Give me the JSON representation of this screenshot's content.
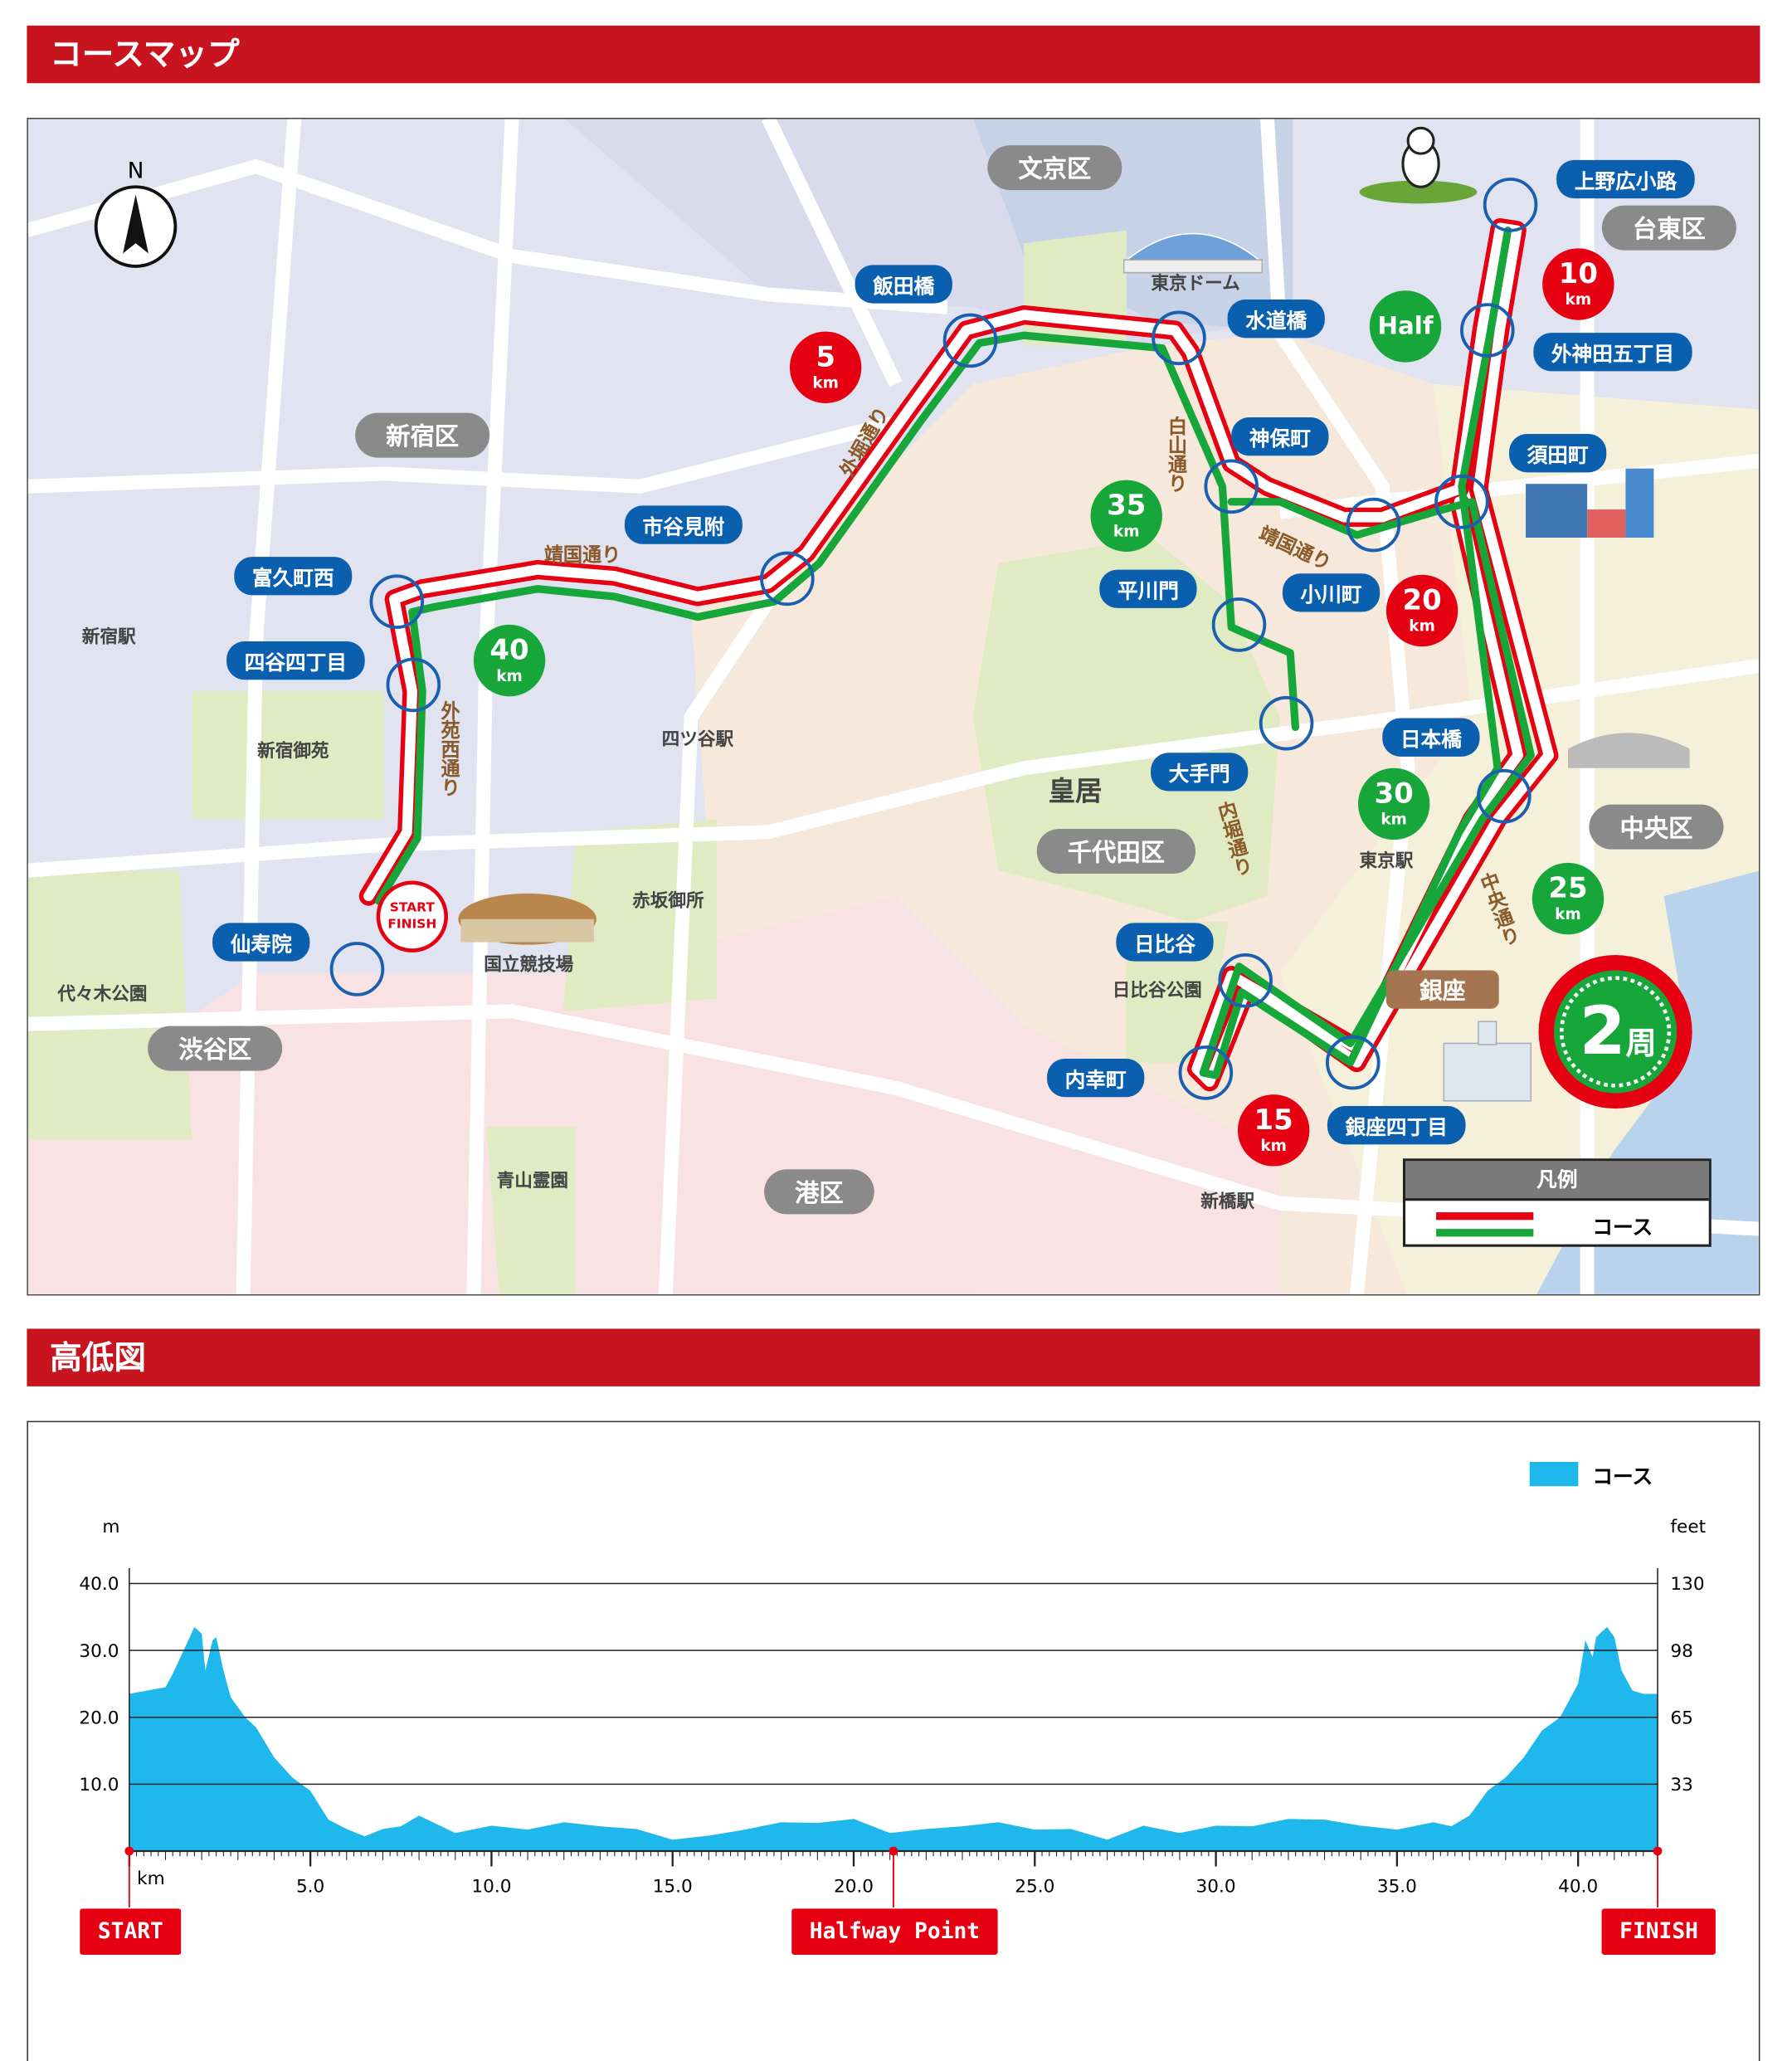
{
  "sections": {
    "map_title": "コースマップ",
    "elevation_title": "高低図"
  },
  "colors": {
    "header": "#c8141e",
    "route_red": "#e50012",
    "route_green": "#16a63a",
    "label_blue": "#0a5fae",
    "elevation": "#1fb8ec"
  },
  "map": {
    "compass": "N",
    "wards": [
      "文京区",
      "台東区",
      "新宿区",
      "中央区",
      "千代田区",
      "渋谷区",
      "港区"
    ],
    "intersections": [
      "上野広小路",
      "外神田五丁目",
      "須田町",
      "飯田橋",
      "水道橋",
      "神保町",
      "市谷見附",
      "富久町西",
      "四谷四丁目",
      "平川門",
      "小川町",
      "日本橋",
      "大手門",
      "日比谷",
      "内幸町",
      "銀座四丁目",
      "仙寿院"
    ],
    "streets": [
      "靖国通り",
      "外堀通り",
      "白山通り",
      "靖国通り",
      "外苑西通り",
      "内堀通り",
      "中央通り"
    ],
    "places": [
      "新宿駅",
      "新宿御苑",
      "四ツ谷駅",
      "赤坂御所",
      "国立競技場",
      "代々木公園",
      "青山霊園",
      "日比谷公園",
      "東京駅",
      "新橋駅",
      "東京ドーム",
      "皇居"
    ],
    "ginza": "銀座",
    "km_markers": [
      {
        "n": "5",
        "u": "km"
      },
      {
        "n": "10",
        "u": "km"
      },
      {
        "n": "15",
        "u": "km"
      },
      {
        "n": "20",
        "u": "km"
      },
      {
        "n": "40",
        "u": "km"
      },
      {
        "n": "35",
        "u": "km"
      },
      {
        "n": "Half",
        "u": ""
      },
      {
        "n": "30",
        "u": "km"
      },
      {
        "n": "25",
        "u": "km"
      }
    ],
    "start_finish": {
      "start": "START",
      "finish": "FINISH"
    },
    "laps": {
      "num": "2",
      "unit": "周"
    },
    "legend": {
      "title": "凡例",
      "item": "コース"
    }
  },
  "chart_data": {
    "type": "area",
    "legend": "コース",
    "ylabel_left": "m",
    "ylabel_right": "feet",
    "xlabel": "km",
    "ylim": [
      0,
      40
    ],
    "xlim": [
      0,
      42.195
    ],
    "y_ticks_left": [
      "40.0",
      "30.0",
      "20.0",
      "10.0"
    ],
    "y_ticks_right": [
      "130",
      "98",
      "65",
      "33"
    ],
    "x_ticks": [
      "5.0",
      "10.0",
      "15.0",
      "20.0",
      "25.0",
      "30.0",
      "35.0",
      "40.0"
    ],
    "grid": true,
    "x": [
      0,
      1.0,
      1.2,
      1.5,
      1.8,
      2.0,
      2.1,
      2.3,
      2.4,
      2.6,
      2.8,
      3.2,
      3.5,
      4.0,
      4.5,
      5.0,
      5.5,
      6.0,
      6.5,
      7.0,
      7.5,
      8.0,
      9.0,
      10.0,
      11.0,
      12.0,
      13.0,
      14.0,
      15.0,
      16.0,
      17.0,
      18.0,
      19.0,
      20.0,
      21.0,
      22.0,
      23.0,
      24.0,
      25.0,
      26.0,
      27.0,
      28.0,
      29.0,
      30.0,
      31.0,
      32.0,
      33.0,
      34.0,
      35.0,
      36.0,
      36.5,
      37.0,
      37.5,
      38.0,
      38.5,
      39.0,
      39.5,
      40.0,
      40.2,
      40.4,
      40.5,
      40.8,
      41.0,
      41.2,
      41.5,
      41.8,
      42.195
    ],
    "y": [
      23.5,
      24.5,
      26.5,
      30,
      33.5,
      32.5,
      27,
      31.5,
      32,
      27,
      23,
      20,
      18.5,
      14,
      11,
      9,
      5,
      3,
      2.5,
      3,
      4,
      5,
      3,
      3.5,
      3.5,
      4,
      4,
      3,
      2,
      2,
      3.5,
      4,
      4.5,
      4.5,
      3,
      3,
      4,
      4,
      3.5,
      3,
      2,
      3.5,
      3,
      3.5,
      4,
      4.5,
      5,
      3.5,
      3.5,
      4,
      4,
      5,
      9,
      11,
      14,
      18,
      20,
      25,
      31.5,
      29,
      32,
      33.5,
      32,
      27,
      24,
      23.5,
      23.5
    ],
    "markers": {
      "start": "START",
      "halfway": "Halfway Point",
      "finish": "FINISH",
      "halfway_km": 21.0975
    }
  }
}
